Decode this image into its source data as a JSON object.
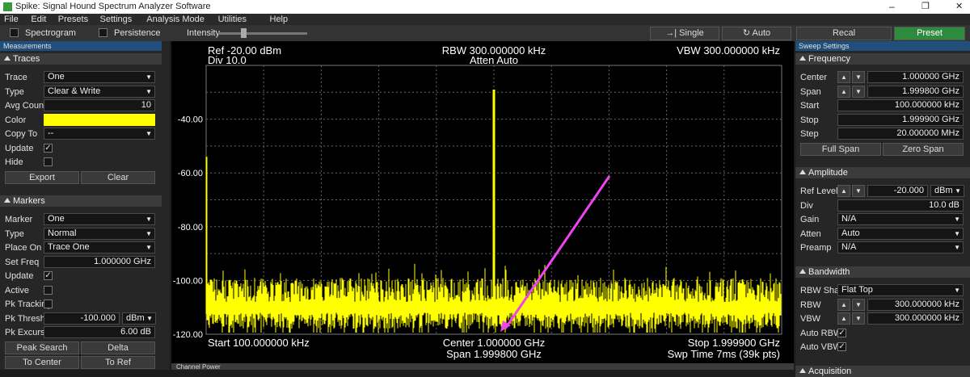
{
  "window_title": "Spike: Signal Hound Spectrum Analyzer Software",
  "menu": [
    "File",
    "Edit",
    "Presets",
    "Settings",
    "Analysis Mode",
    "Utilities",
    "Help"
  ],
  "toolbar": {
    "spectrogram": "Spectrogram",
    "persistence": "Persistence",
    "intensity": "Intensity",
    "single": "Single",
    "auto": "Auto",
    "recal": "Recal",
    "preset": "Preset"
  },
  "left_panel": {
    "header": "Measurements",
    "sections": [
      {
        "title": "Traces",
        "rows": [
          {
            "label": "Trace",
            "kind": "select",
            "value": "One"
          },
          {
            "label": "Type",
            "kind": "select",
            "value": "Clear & Write"
          },
          {
            "label": "Avg Count",
            "kind": "text",
            "value": "10"
          },
          {
            "label": "Color",
            "kind": "color",
            "color": "#ffff00"
          },
          {
            "label": "Copy To",
            "kind": "select",
            "value": "--"
          },
          {
            "label": "Update",
            "kind": "check",
            "checked": true
          },
          {
            "label": "Hide",
            "kind": "check",
            "checked": false
          }
        ],
        "buttons": [
          [
            "Export",
            "Clear"
          ]
        ]
      },
      {
        "title": "Markers",
        "rows": [
          {
            "label": "Marker",
            "kind": "select",
            "value": "One"
          },
          {
            "label": "Type",
            "kind": "select",
            "value": "Normal"
          },
          {
            "label": "Place On",
            "kind": "select",
            "value": "Trace One"
          },
          {
            "label": "Set Freq",
            "kind": "text",
            "value": "1.000000 GHz"
          },
          {
            "label": "Update",
            "kind": "check",
            "checked": true
          },
          {
            "label": "Active",
            "kind": "check",
            "checked": false
          },
          {
            "label": "Pk Tracking",
            "kind": "check",
            "checked": false
          },
          {
            "label": "Pk Threshold",
            "kind": "text",
            "value": "-100.000",
            "unit": "dBm"
          },
          {
            "label": "Pk Excurs.",
            "kind": "text",
            "value": "6.00 dB"
          }
        ],
        "buttons": [
          [
            "Peak Search",
            "Delta"
          ],
          [
            "To Center",
            "To Ref"
          ]
        ]
      }
    ]
  },
  "right_panel": {
    "header": "Sweep Settings",
    "sections": [
      {
        "title": "Frequency",
        "rows": [
          {
            "label": "Center",
            "kind": "spin",
            "value": "1.000000 GHz"
          },
          {
            "label": "Span",
            "kind": "spin",
            "value": "1.999800 GHz"
          },
          {
            "label": "Start",
            "kind": "text",
            "value": "100.000000 kHz"
          },
          {
            "label": "Stop",
            "kind": "text",
            "value": "1.999900 GHz"
          },
          {
            "label": "Step",
            "kind": "text",
            "value": "20.000000 MHz"
          }
        ],
        "buttons": [
          [
            "Full Span",
            "Zero Span"
          ]
        ]
      },
      {
        "title": "Amplitude",
        "rows": [
          {
            "label": "Ref Level",
            "kind": "spin",
            "value": "-20.000",
            "unit": "dBm"
          },
          {
            "label": "Div",
            "kind": "text",
            "value": "10.0 dB"
          },
          {
            "label": "Gain",
            "kind": "select",
            "value": "N/A"
          },
          {
            "label": "Atten",
            "kind": "select",
            "value": "Auto"
          },
          {
            "label": "Preamp",
            "kind": "select",
            "value": "N/A"
          }
        ]
      },
      {
        "title": "Bandwidth",
        "rows": [
          {
            "label": "RBW Shape",
            "kind": "select",
            "value": "Flat Top"
          },
          {
            "label": "RBW",
            "kind": "spin",
            "value": "300.000000 kHz"
          },
          {
            "label": "VBW",
            "kind": "spin",
            "value": "300.000000 kHz"
          },
          {
            "label": "Auto RBW",
            "kind": "check",
            "checked": true
          },
          {
            "label": "Auto VBW",
            "kind": "check",
            "checked": true
          }
        ]
      },
      {
        "title": "Acquisition"
      }
    ]
  },
  "plot": {
    "ref": "Ref -20.00 dBm",
    "div": "Div 10.0",
    "rbw": "RBW 300.000000 kHz",
    "atten": "Atten Auto",
    "vbw": "VBW 300.000000 kHz",
    "start": "Start 100.000000 kHz",
    "center": "Center 1.000000 GHz",
    "span": "Span 1.999800 GHz",
    "stop": "Stop 1.999900 GHz",
    "sweep_time": "Swp Time 7ms (39k pts)",
    "y_labels": [
      "-40.00",
      "-60.00",
      "-80.00",
      "-100.00",
      "-120.00"
    ],
    "trace_color": "#ffff00"
  },
  "bottom_panel": "Channel Power"
}
